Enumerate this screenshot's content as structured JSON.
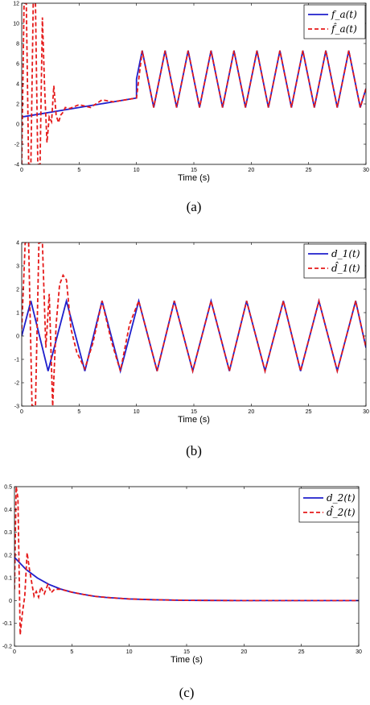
{
  "chart_data": [
    {
      "type": "line",
      "caption": "(a)",
      "xlabel": "Time (s)",
      "xlim": [
        0,
        30
      ],
      "ylim": [
        -5,
        12
      ],
      "xticks": [
        "0",
        "5",
        "10",
        "15",
        "20",
        "25",
        "30"
      ],
      "yticks": [
        "-4",
        "-2",
        "0",
        "2",
        "4",
        "6",
        "8",
        "10",
        "12"
      ],
      "legend_position": "top-right",
      "series": [
        {
          "name": "f_a(t)",
          "color": "#1f1fcc",
          "style": "solid",
          "x": [
            0,
            10,
            10,
            10.5,
            11.5,
            12.5,
            13.5,
            14.5,
            15.5,
            16.5,
            17.5,
            18.5,
            19.5,
            20.5,
            21.5,
            22.5,
            23.5,
            24.5,
            25.5,
            26.5,
            27.5,
            28.5,
            29.5,
            30
          ],
          "y": [
            0,
            2,
            4,
            7,
            1,
            7,
            1,
            7,
            1,
            7,
            1,
            7,
            1,
            7,
            1,
            7,
            1,
            7,
            1,
            7,
            1,
            7,
            1,
            3
          ]
        },
        {
          "name": "f̂_a(t)",
          "color": "#e51a1a",
          "style": "dashed",
          "x": [
            0,
            0.2,
            0.4,
            0.6,
            0.8,
            1.0,
            1.2,
            1.4,
            1.6,
            1.8,
            2.0,
            2.2,
            2.4,
            2.6,
            2.8,
            3.0,
            3.2,
            3.4,
            3.6,
            3.8,
            4.2,
            5,
            6,
            7,
            8,
            9,
            10,
            10.5,
            11.5,
            12.5,
            13.5,
            14.5,
            15.5,
            16.5,
            17.5,
            18.5,
            19.5,
            20.5,
            21.5,
            22.5,
            23.5,
            24.5,
            25.5,
            26.5,
            27.5,
            28.5,
            29.5,
            30
          ],
          "y": [
            -5,
            12,
            12,
            -5,
            -5,
            12,
            12,
            -5,
            -5,
            10.5,
            3,
            -2.7,
            0,
            -0.5,
            3.3,
            0.2,
            -0.6,
            0.2,
            0.5,
            1.0,
            0.9,
            1.3,
            1.0,
            1.8,
            1.6,
            1.8,
            2,
            7,
            1,
            7,
            1,
            7,
            1,
            7,
            1,
            7,
            1,
            7,
            1,
            7,
            1,
            7,
            1,
            7,
            1,
            7,
            1,
            3
          ]
        }
      ]
    },
    {
      "type": "line",
      "caption": "(b)",
      "xlabel": "Time (s)",
      "xlim": [
        0,
        30
      ],
      "ylim": [
        -3,
        4
      ],
      "xticks": [
        "0",
        "5",
        "10",
        "15",
        "20",
        "25",
        "30"
      ],
      "yticks": [
        "-3",
        "-2",
        "-1",
        "0",
        "1",
        "2",
        "3",
        "4"
      ],
      "legend_position": "top-right",
      "series": [
        {
          "name": "d_1(t)",
          "color": "#1f1fcc",
          "style": "solid",
          "x": [
            0,
            0.8,
            2.3,
            3.9,
            5.5,
            7.0,
            8.6,
            10.2,
            11.8,
            13.3,
            14.9,
            16.5,
            18.1,
            19.6,
            21.2,
            22.8,
            24.3,
            25.9,
            27.5,
            29.1,
            30
          ],
          "y": [
            0,
            1.5,
            -1.5,
            1.5,
            -1.5,
            1.5,
            -1.5,
            1.5,
            -1.5,
            1.5,
            -1.5,
            1.5,
            -1.5,
            1.5,
            -1.5,
            1.5,
            -1.5,
            1.5,
            -1.5,
            1.5,
            -0.5
          ]
        },
        {
          "name": "d̂_1(t)",
          "color": "#e51a1a",
          "style": "dashed",
          "x": [
            0,
            0.3,
            0.6,
            0.9,
            1.2,
            1.5,
            1.8,
            2.1,
            2.4,
            2.7,
            3.0,
            3.3,
            3.6,
            3.9,
            4.3,
            4.8,
            5.5,
            6.2,
            7.0,
            7.8,
            8.6,
            9.4,
            10.2,
            11.8,
            13.3,
            14.9,
            16.5,
            18.1,
            19.6,
            21.2,
            22.8,
            24.3,
            25.9,
            27.5,
            29.1,
            30
          ],
          "y": [
            0.3,
            4,
            4,
            -3,
            -3,
            4,
            4,
            -0.5,
            1.8,
            -3,
            0.5,
            2.2,
            2.6,
            2.4,
            0.3,
            -0.7,
            -1.4,
            -0.3,
            1.5,
            -0.2,
            -1.5,
            0.5,
            1.5,
            -1.5,
            1.5,
            -1.5,
            1.5,
            -1.5,
            1.5,
            -1.5,
            1.5,
            -1.5,
            1.5,
            -1.5,
            1.5,
            -0.5
          ]
        }
      ]
    },
    {
      "type": "line",
      "caption": "(c)",
      "xlabel": "Time (s)",
      "xlim": [
        0,
        30
      ],
      "ylim": [
        -0.2,
        0.5
      ],
      "xticks": [
        "0",
        "5",
        "10",
        "15",
        "20",
        "25",
        "30"
      ],
      "yticks": [
        "-0.2",
        "-0.1",
        "0",
        "0.1",
        "0.2",
        "0.3",
        "0.4",
        "0.5"
      ],
      "legend_position": "top-right",
      "series": [
        {
          "name": "d_2(t)",
          "color": "#1f1fcc",
          "style": "solid",
          "x": [
            0,
            1,
            2,
            3,
            4,
            5,
            6,
            7,
            8,
            10,
            12,
            15,
            20,
            25,
            30
          ],
          "y": [
            0.19,
            0.137,
            0.099,
            0.071,
            0.051,
            0.037,
            0.027,
            0.019,
            0.014,
            0.007,
            0.004,
            0.001,
            0.0,
            0.0,
            0.0
          ]
        },
        {
          "name": "d̂_2(t)",
          "color": "#e51a1a",
          "style": "dashed",
          "x": [
            0,
            0.15,
            0.3,
            0.5,
            0.7,
            0.9,
            1.1,
            1.3,
            1.5,
            1.7,
            1.9,
            2.1,
            2.3,
            2.6,
            2.9,
            3.2,
            3.5,
            4,
            5,
            6,
            7,
            8,
            10,
            12,
            15,
            20,
            25,
            30
          ],
          "y": [
            0.05,
            0.5,
            0.45,
            -0.15,
            -0.05,
            0.02,
            0.21,
            0.14,
            0.08,
            0.02,
            0.04,
            0.015,
            0.06,
            0.03,
            0.07,
            0.035,
            0.05,
            0.05,
            0.037,
            0.027,
            0.019,
            0.014,
            0.007,
            0.004,
            0.001,
            0.0,
            0.0,
            0.0
          ]
        }
      ]
    }
  ]
}
